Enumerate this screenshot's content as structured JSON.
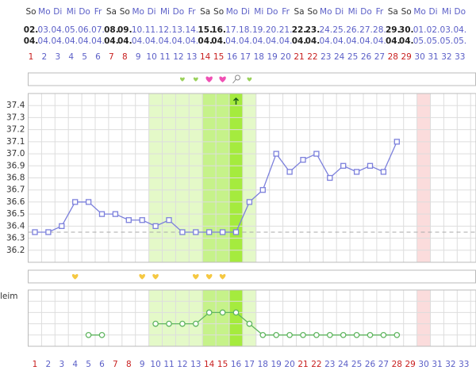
{
  "calendar": {
    "weekdays": [
      "So",
      "Mo",
      "Di",
      "Mi",
      "Do",
      "Fr",
      "Sa",
      "So",
      "Mo",
      "Di",
      "Mi",
      "Do",
      "Fr",
      "Sa",
      "So",
      "Mo",
      "Di",
      "Mi",
      "Do",
      "Fr",
      "Sa",
      "So",
      "Mo",
      "Di",
      "Mi",
      "Do",
      "Fr",
      "Sa",
      "So",
      "Mo",
      "Di",
      "Mi",
      "Do"
    ],
    "dates_day": [
      "02.",
      "03.",
      "04.",
      "05.",
      "06.",
      "07.",
      "08.",
      "09.",
      "10.",
      "11.",
      "12.",
      "13.",
      "14.",
      "15.",
      "16.",
      "17.",
      "18.",
      "19.",
      "20.",
      "21.",
      "22.",
      "23.",
      "24.",
      "25.",
      "26.",
      "27.",
      "28.",
      "29.",
      "30.",
      "01.",
      "02.",
      "03.",
      "04."
    ],
    "dates_month": [
      "04.",
      "04.",
      "04.",
      "04.",
      "04.",
      "04.",
      "04.",
      "04.",
      "04.",
      "04.",
      "04.",
      "04.",
      "04.",
      "04.",
      "04.",
      "04.",
      "04.",
      "04.",
      "04.",
      "04.",
      "04.",
      "04.",
      "04.",
      "04.",
      "04.",
      "04.",
      "04.",
      "04.",
      "04.",
      "05.",
      "05.",
      "05.",
      "05."
    ],
    "weekend": [
      "So",
      "Sa"
    ],
    "fertile_window": [
      10,
      17
    ],
    "peak_days": [
      14,
      16
    ],
    "ovulation_day": 16,
    "marked_day": 30,
    "yellow_mark_days": [
      4,
      9,
      10,
      13,
      14,
      15
    ]
  },
  "chart_data": [
    {
      "type": "line",
      "categories": [
        "1",
        "2",
        "3",
        "4",
        "5",
        "6",
        "7",
        "8",
        "9",
        "10",
        "11",
        "12",
        "13",
        "14",
        "15",
        "16",
        "17",
        "18",
        "19",
        "20",
        "21",
        "22",
        "23",
        "24",
        "25",
        "26",
        "27",
        "28",
        "29",
        "30",
        "31",
        "32",
        "33"
      ],
      "values": [
        36.35,
        36.35,
        36.4,
        36.6,
        36.6,
        36.5,
        36.5,
        36.45,
        36.45,
        36.4,
        36.45,
        36.35,
        36.35,
        36.35,
        36.35,
        36.35,
        36.6,
        36.7,
        37.0,
        36.85,
        36.95,
        37.0,
        36.8,
        36.9,
        36.85,
        36.9,
        36.85,
        37.1,
        null,
        null,
        null,
        null,
        null
      ],
      "color": "#7c80dc",
      "ylim": [
        36.1,
        37.5
      ],
      "yticks": [
        36.2,
        36.3,
        36.4,
        36.5,
        36.6,
        36.7,
        36.8,
        36.9,
        {
          "value": 37,
          "label": "37.0"
        },
        37.1,
        37.2,
        37.3,
        37.4
      ],
      "coverline": 36.35,
      "grid": true
    },
    {
      "type": "line",
      "y_label": "leim",
      "categories": [
        "1",
        "2",
        "3",
        "4",
        "5",
        "6",
        "7",
        "8",
        "9",
        "10",
        "11",
        "12",
        "13",
        "14",
        "15",
        "16",
        "17",
        "18",
        "19",
        "20",
        "21",
        "22",
        "23",
        "24",
        "25",
        "26",
        "27",
        "28",
        "29",
        "30",
        "31",
        "32",
        "33"
      ],
      "values": [
        null,
        null,
        null,
        null,
        1,
        1,
        null,
        null,
        null,
        2,
        2,
        2,
        2,
        3,
        3,
        3,
        2,
        1,
        1,
        1,
        1,
        1,
        1,
        1,
        1,
        1,
        1,
        1,
        null,
        null,
        null,
        null,
        null
      ],
      "color": "#5fb55f",
      "ylim": [
        0,
        5
      ],
      "grid_levels": [
        1,
        2,
        3,
        4
      ],
      "grid": true
    }
  ]
}
